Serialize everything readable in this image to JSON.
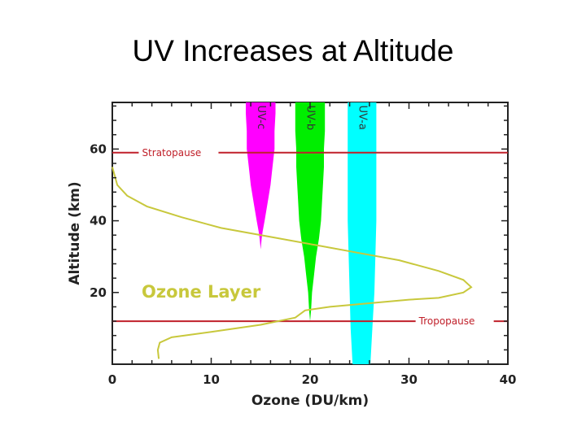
{
  "slide": {
    "title": "UV Increases at Altitude"
  },
  "chart_data": {
    "type": "line",
    "xlabel": "Ozone (DU/km)",
    "ylabel": "Altitude (km)",
    "xlim": [
      0,
      40
    ],
    "ylim": [
      0,
      73
    ],
    "xticks": [
      0,
      10,
      20,
      30,
      40
    ],
    "yticks": [
      20,
      40,
      60
    ],
    "grid": false,
    "colors": {
      "ozone": "#c8c83c",
      "ref_line": "#c0202a",
      "uvc": "#ff00ff",
      "uvb": "#00ee00",
      "uva": "#00ffff"
    },
    "ozone_label": "Ozone Layer",
    "ozone_profile": {
      "x": [
        0.0,
        0.5,
        1.5,
        3.5,
        7.0,
        11.0,
        16.0,
        21.0,
        25.0,
        29.0,
        33.0,
        35.5,
        36.3,
        35.5,
        33.0,
        30.0,
        26.0,
        22.0,
        19.5,
        18.5,
        15.0,
        10.0,
        6.0,
        4.8,
        4.6,
        4.7
      ],
      "y": [
        55.0,
        50.0,
        47.0,
        44.0,
        41.0,
        38.0,
        35.5,
        33.0,
        31.0,
        29.0,
        26.0,
        23.5,
        21.5,
        20.0,
        18.5,
        18.0,
        17.0,
        16.0,
        15.0,
        13.0,
        11.0,
        9.0,
        7.5,
        6.0,
        4.0,
        1.5
      ]
    },
    "reference_lines": [
      {
        "name": "Stratopause",
        "y": 59
      },
      {
        "name": "Tropopause",
        "y": 12
      }
    ],
    "uv_bands": [
      {
        "name": "UV-c",
        "color": "#ff00ff",
        "y": [
          73,
          70,
          65,
          60,
          55,
          50,
          45,
          40,
          37,
          35,
          32
        ],
        "left": [
          13.5,
          13.5,
          13.6,
          13.6,
          13.8,
          14.0,
          14.3,
          14.6,
          14.8,
          14.9,
          15.0
        ],
        "right": [
          16.5,
          16.5,
          16.4,
          16.4,
          16.2,
          16.0,
          15.7,
          15.4,
          15.2,
          15.1,
          15.0
        ]
      },
      {
        "name": "UV-b",
        "color": "#00ee00",
        "y": [
          73,
          70,
          65,
          60,
          55,
          50,
          45,
          40,
          35,
          30,
          25,
          20,
          15,
          12,
          8,
          5,
          0
        ],
        "left": [
          18.5,
          18.5,
          18.5,
          18.6,
          18.6,
          18.7,
          18.8,
          18.9,
          19.1,
          19.4,
          19.6,
          19.8,
          19.9,
          20.0,
          20.0,
          20.0,
          20.0
        ],
        "right": [
          21.5,
          21.5,
          21.5,
          21.4,
          21.4,
          21.3,
          21.2,
          21.1,
          20.9,
          20.6,
          20.4,
          20.2,
          20.1,
          20.0,
          20.0,
          20.0,
          20.0
        ]
      },
      {
        "name": "UV-a",
        "color": "#00ffff",
        "y": [
          73,
          70,
          60,
          50,
          40,
          30,
          20,
          10,
          5,
          0
        ],
        "left": [
          23.8,
          23.8,
          23.8,
          23.8,
          23.8,
          23.9,
          24.0,
          24.1,
          24.2,
          24.3
        ],
        "right": [
          26.7,
          26.7,
          26.7,
          26.7,
          26.7,
          26.6,
          26.5,
          26.3,
          26.2,
          26.1
        ]
      }
    ]
  }
}
